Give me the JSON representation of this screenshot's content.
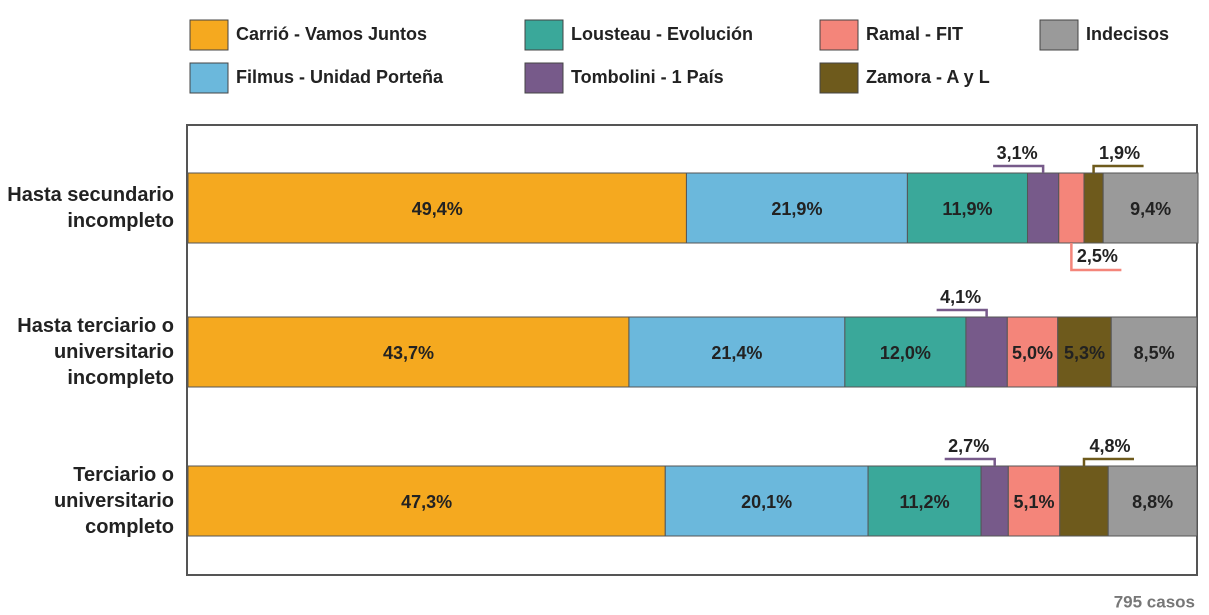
{
  "chart_data": {
    "type": "stacked_bar_horizontal",
    "categories": [
      "Hasta secundario incompleto",
      "Hasta terciario o universitario incompleto",
      "Terciario o universitario completo"
    ],
    "series": [
      {
        "name": "Carrió - Vamos Juntos",
        "color": "#f5a91f",
        "values": [
          49.4,
          43.7,
          47.3
        ],
        "value_labels": [
          "49,4%",
          "43,7%",
          "47,3%"
        ]
      },
      {
        "name": "Filmus - Unidad Porteña",
        "color": "#6bb8dc",
        "values": [
          21.9,
          21.4,
          20.1
        ],
        "value_labels": [
          "21,9%",
          "21,4%",
          "20,1%"
        ]
      },
      {
        "name": "Lousteau - Evolución",
        "color": "#3aa89a",
        "values": [
          11.9,
          12.0,
          11.2
        ],
        "value_labels": [
          "11,9%",
          "12,0%",
          "11,2%"
        ]
      },
      {
        "name": "Tombolini - 1 País",
        "color": "#775a8a",
        "values": [
          3.1,
          4.1,
          2.7
        ],
        "value_labels": [
          "3,1%",
          "4,1%",
          "2,7%"
        ]
      },
      {
        "name": "Ramal - FIT",
        "color": "#f4857a",
        "values": [
          2.5,
          5.0,
          5.1
        ],
        "value_labels": [
          "2,5%",
          "5,0%",
          "5,1%"
        ]
      },
      {
        "name": "Zamora - A y L",
        "color": "#6e5a1c",
        "values": [
          1.9,
          5.3,
          4.8
        ],
        "value_labels": [
          "1,9%",
          "5,3%",
          "4,8%"
        ]
      },
      {
        "name": "Indecisos",
        "color": "#9a9a9a",
        "values": [
          9.4,
          8.5,
          8.8
        ],
        "value_labels": [
          "9,4%",
          "8,5%",
          "8,8%"
        ]
      }
    ],
    "xlim": [
      0,
      100
    ],
    "note": "795 casos"
  }
}
